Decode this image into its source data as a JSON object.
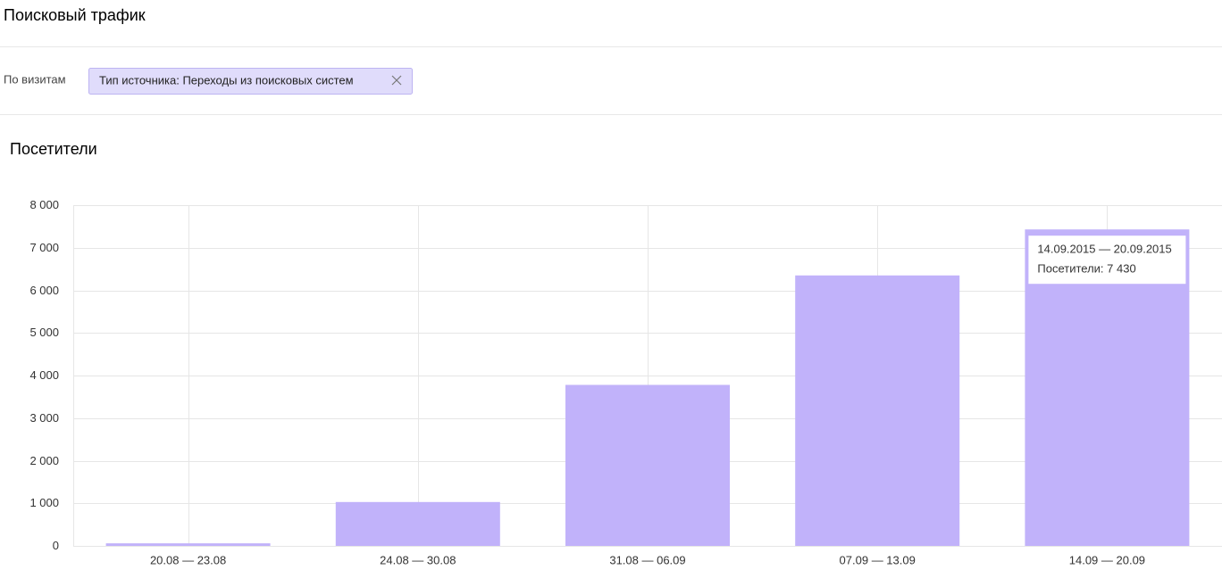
{
  "header": {
    "title": "Поисковый трафик"
  },
  "filter": {
    "label": "По визитам",
    "chip": "Тип источника: Переходы из поисковых систем"
  },
  "chart_data": {
    "type": "bar",
    "title": "Посетители",
    "categories": [
      "20.08 — 23.08",
      "24.08 — 30.08",
      "31.08 — 06.09",
      "07.09 — 13.09",
      "14.09 — 20.09"
    ],
    "values": [
      60,
      1030,
      3780,
      6350,
      7430
    ],
    "color": "#c1b2fa",
    "ylim": [
      0,
      8000
    ],
    "yticks": [
      0,
      {
        "value": 1000,
        "label": "1 000"
      },
      {
        "value": 2000,
        "label": "2 000"
      },
      {
        "value": 3000,
        "label": "3 000"
      },
      {
        "value": 4000,
        "label": "4 000"
      },
      {
        "value": 5000,
        "label": "5 000"
      },
      {
        "value": 6000,
        "label": "6 000"
      },
      {
        "value": 7000,
        "label": "7 000"
      },
      {
        "value": 8000,
        "label": "8 000"
      }
    ],
    "grid": true,
    "tooltip": {
      "date": "14.09.2015 — 20.09.2015",
      "text": "Посетители: 7 430"
    }
  }
}
